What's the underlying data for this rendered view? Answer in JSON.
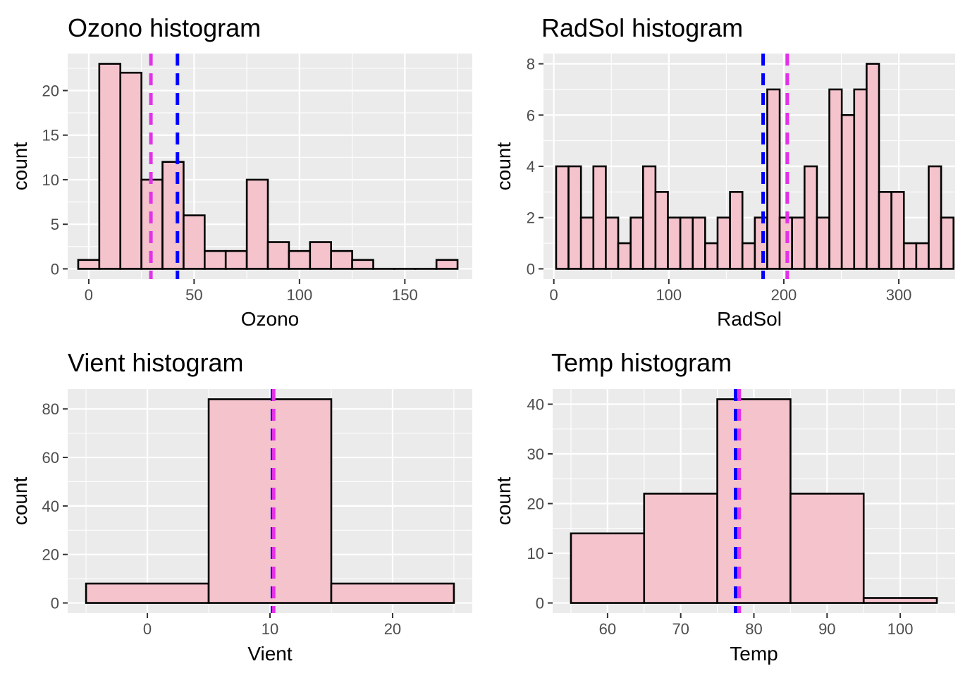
{
  "chart_data": [
    {
      "type": "bar",
      "title": "Ozono histogram",
      "xlabel": "Ozono",
      "ylabel": "count",
      "xlim": [
        -10,
        182
      ],
      "ylim": [
        -1.15,
        24.15
      ],
      "x_ticks": [
        0,
        50,
        100,
        150
      ],
      "y_ticks": [
        0,
        5,
        10,
        15,
        20
      ],
      "binwidth": 10,
      "bins": [
        {
          "start": -5,
          "end": 5,
          "count": 1
        },
        {
          "start": 5,
          "end": 15,
          "count": 23
        },
        {
          "start": 15,
          "end": 25,
          "count": 22
        },
        {
          "start": 25,
          "end": 35,
          "count": 10
        },
        {
          "start": 35,
          "end": 45,
          "count": 12
        },
        {
          "start": 45,
          "end": 55,
          "count": 6
        },
        {
          "start": 55,
          "end": 65,
          "count": 2
        },
        {
          "start": 65,
          "end": 75,
          "count": 2
        },
        {
          "start": 75,
          "end": 85,
          "count": 10
        },
        {
          "start": 85,
          "end": 95,
          "count": 3
        },
        {
          "start": 95,
          "end": 105,
          "count": 2
        },
        {
          "start": 105,
          "end": 115,
          "count": 3
        },
        {
          "start": 115,
          "end": 125,
          "count": 2
        },
        {
          "start": 125,
          "end": 135,
          "count": 1
        },
        {
          "start": 135,
          "end": 145,
          "count": 0
        },
        {
          "start": 145,
          "end": 155,
          "count": 0
        },
        {
          "start": 155,
          "end": 165,
          "count": 0
        },
        {
          "start": 165,
          "end": 175,
          "count": 1
        }
      ],
      "vlines": [
        {
          "x": 29.5,
          "color": "#e231e8"
        },
        {
          "x": 42.1,
          "color": "#0000ff"
        }
      ]
    },
    {
      "type": "bar",
      "title": "RadSol histogram",
      "xlabel": "RadSol",
      "ylabel": "count",
      "xlim": [
        -9,
        349
      ],
      "ylim": [
        -0.4,
        8.4
      ],
      "x_ticks": [
        0,
        100,
        200,
        300
      ],
      "y_ticks": [
        0,
        2,
        4,
        6,
        8
      ],
      "binwidth": 10.8,
      "bins": [
        {
          "start": 2,
          "end": 12.8,
          "count": 4
        },
        {
          "start": 12.8,
          "end": 23.6,
          "count": 4
        },
        {
          "start": 23.6,
          "end": 34.4,
          "count": 2
        },
        {
          "start": 34.4,
          "end": 45.2,
          "count": 4
        },
        {
          "start": 45.2,
          "end": 56,
          "count": 2
        },
        {
          "start": 56,
          "end": 66.8,
          "count": 1
        },
        {
          "start": 66.8,
          "end": 77.6,
          "count": 2
        },
        {
          "start": 77.6,
          "end": 88.4,
          "count": 4
        },
        {
          "start": 88.4,
          "end": 99.2,
          "count": 3
        },
        {
          "start": 99.2,
          "end": 110,
          "count": 2
        },
        {
          "start": 110,
          "end": 120.8,
          "count": 2
        },
        {
          "start": 120.8,
          "end": 131.6,
          "count": 2
        },
        {
          "start": 131.6,
          "end": 142.4,
          "count": 1
        },
        {
          "start": 142.4,
          "end": 153.2,
          "count": 2
        },
        {
          "start": 153.2,
          "end": 164,
          "count": 3
        },
        {
          "start": 164,
          "end": 174.8,
          "count": 1
        },
        {
          "start": 174.8,
          "end": 185.6,
          "count": 2
        },
        {
          "start": 185.6,
          "end": 196.4,
          "count": 7
        },
        {
          "start": 196.4,
          "end": 207.2,
          "count": 2
        },
        {
          "start": 207.2,
          "end": 218,
          "count": 2
        },
        {
          "start": 218,
          "end": 228.8,
          "count": 4
        },
        {
          "start": 228.8,
          "end": 239.6,
          "count": 2
        },
        {
          "start": 239.6,
          "end": 250.4,
          "count": 7
        },
        {
          "start": 250.4,
          "end": 261.2,
          "count": 6
        },
        {
          "start": 261.2,
          "end": 272,
          "count": 7
        },
        {
          "start": 272,
          "end": 282.8,
          "count": 8
        },
        {
          "start": 282.8,
          "end": 293.6,
          "count": 3
        },
        {
          "start": 293.6,
          "end": 304.4,
          "count": 3
        },
        {
          "start": 304.4,
          "end": 315.2,
          "count": 1
        },
        {
          "start": 315.2,
          "end": 326,
          "count": 1
        },
        {
          "start": 326,
          "end": 336.8,
          "count": 4
        },
        {
          "start": 336.8,
          "end": 347.6,
          "count": 2
        }
      ],
      "vlines": [
        {
          "x": 182,
          "color": "#0000ff"
        },
        {
          "x": 203,
          "color": "#e231e8"
        }
      ]
    },
    {
      "type": "bar",
      "title": "Vient histogram",
      "xlabel": "Vient",
      "ylabel": "count",
      "xlim": [
        -6.5,
        26.5
      ],
      "ylim": [
        -4.2,
        88.2
      ],
      "x_ticks": [
        0,
        10,
        20
      ],
      "y_ticks": [
        0,
        20,
        40,
        60,
        80
      ],
      "binwidth": 10,
      "bins": [
        {
          "start": -5,
          "end": 5,
          "count": 8
        },
        {
          "start": 5,
          "end": 15,
          "count": 84
        },
        {
          "start": 15,
          "end": 25,
          "count": 8
        }
      ],
      "vlines": [
        {
          "x": 10.2,
          "color": "#0000ff"
        },
        {
          "x": 10.3,
          "color": "#e231e8"
        }
      ]
    },
    {
      "type": "bar",
      "title": "Temp histogram",
      "xlabel": "Temp",
      "ylabel": "count",
      "xlim": [
        52.5,
        107.5
      ],
      "ylim": [
        -2.05,
        43.05
      ],
      "x_ticks": [
        60,
        70,
        80,
        90,
        100
      ],
      "y_ticks": [
        0,
        10,
        20,
        30,
        40
      ],
      "binwidth": 10,
      "bins": [
        {
          "start": 55,
          "end": 65,
          "count": 14
        },
        {
          "start": 65,
          "end": 75,
          "count": 22
        },
        {
          "start": 75,
          "end": 85,
          "count": 41
        },
        {
          "start": 85,
          "end": 95,
          "count": 22
        },
        {
          "start": 95,
          "end": 105,
          "count": 1
        }
      ],
      "vlines": [
        {
          "x": 77.5,
          "color": "#0000ff"
        },
        {
          "x": 78,
          "color": "#e231e8"
        }
      ]
    }
  ]
}
